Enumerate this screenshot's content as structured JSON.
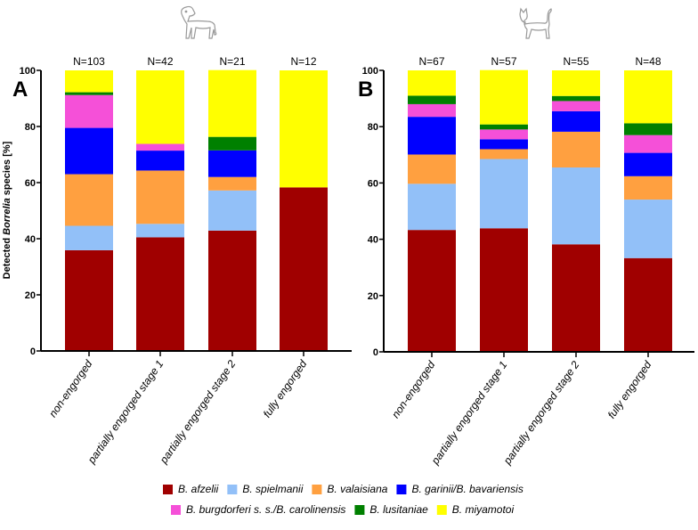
{
  "chart_data": [
    {
      "type": "bar",
      "stacked": true,
      "panel_label": "A",
      "icon": "dog-icon",
      "ylabel_prefix": "Detected ",
      "ylabel_italic": "Borrelia",
      "ylabel_suffix": " species [%]",
      "ylim": [
        0,
        100
      ],
      "yticks": [
        0,
        20,
        40,
        60,
        80,
        100
      ],
      "categories": [
        "non-engorged",
        "partially engorged stage 1",
        "partially engorged stage 2",
        "fully engorged"
      ],
      "n_labels": [
        "N=103",
        "N=42",
        "N=21",
        "N=12"
      ],
      "series": [
        {
          "name": "B. afzelii",
          "values": [
            35.9,
            40.5,
            42.9,
            58.3
          ]
        },
        {
          "name": "B. spielmanii",
          "values": [
            8.7,
            4.8,
            14.3,
            0
          ]
        },
        {
          "name": "B. valaisiana",
          "values": [
            18.4,
            19.0,
            4.8,
            0
          ]
        },
        {
          "name": "B. garinii/B. bavariensis",
          "values": [
            16.5,
            7.1,
            9.5,
            0
          ]
        },
        {
          "name": "B. burgdorferi s. s./B. carolinensis",
          "values": [
            11.7,
            2.4,
            0,
            0
          ]
        },
        {
          "name": "B. lusitaniae",
          "values": [
            1.0,
            0,
            4.8,
            0
          ]
        },
        {
          "name": "B. miyamotoi",
          "values": [
            7.8,
            26.2,
            23.8,
            41.7
          ]
        }
      ]
    },
    {
      "type": "bar",
      "stacked": true,
      "panel_label": "B",
      "icon": "cat-icon",
      "ylim": [
        0,
        100
      ],
      "yticks": [
        0,
        20,
        40,
        60,
        80,
        100
      ],
      "categories": [
        "non-engorged",
        "partially engorged stage 1",
        "partially engorged stage 2",
        "fully engorged"
      ],
      "n_labels": [
        "N=67",
        "N=57",
        "N=55",
        "N=48"
      ],
      "series": [
        {
          "name": "B. afzelii",
          "values": [
            43.3,
            43.9,
            38.2,
            33.3
          ]
        },
        {
          "name": "B. spielmanii",
          "values": [
            16.4,
            24.6,
            27.3,
            20.8
          ]
        },
        {
          "name": "B. valaisiana",
          "values": [
            10.4,
            3.5,
            12.7,
            8.3
          ]
        },
        {
          "name": "B. garinii/B. bavariensis",
          "values": [
            13.4,
            3.5,
            7.3,
            8.3
          ]
        },
        {
          "name": "B. burgdorferi s. s./B. carolinensis",
          "values": [
            4.5,
            3.5,
            3.6,
            6.3
          ]
        },
        {
          "name": "B. lusitaniae",
          "values": [
            3.0,
            1.8,
            1.8,
            4.2
          ]
        },
        {
          "name": "B. miyamotoi",
          "values": [
            9.0,
            19.3,
            9.1,
            18.8
          ]
        }
      ]
    }
  ],
  "legend": {
    "placement": "bottom",
    "rows": [
      [
        "B. afzelii",
        "B. spielmanii",
        "B. valaisiana",
        "B. garinii/B. bavariensis"
      ],
      [
        "B. burgdorferi s. s./B. carolinensis",
        "B. lusitaniae",
        "B. miyamotoi"
      ]
    ]
  },
  "colors": {
    "B. afzelii": "#a00000",
    "B. spielmanii": "#92c0f8",
    "B. valaisiana": "#ffa040",
    "B. garinii/B. bavariensis": "#0000ff",
    "B. burgdorferi s. s./B. carolinensis": "#f550d8",
    "B. lusitaniae": "#008000",
    "B. miyamotoi": "#ffff00"
  }
}
